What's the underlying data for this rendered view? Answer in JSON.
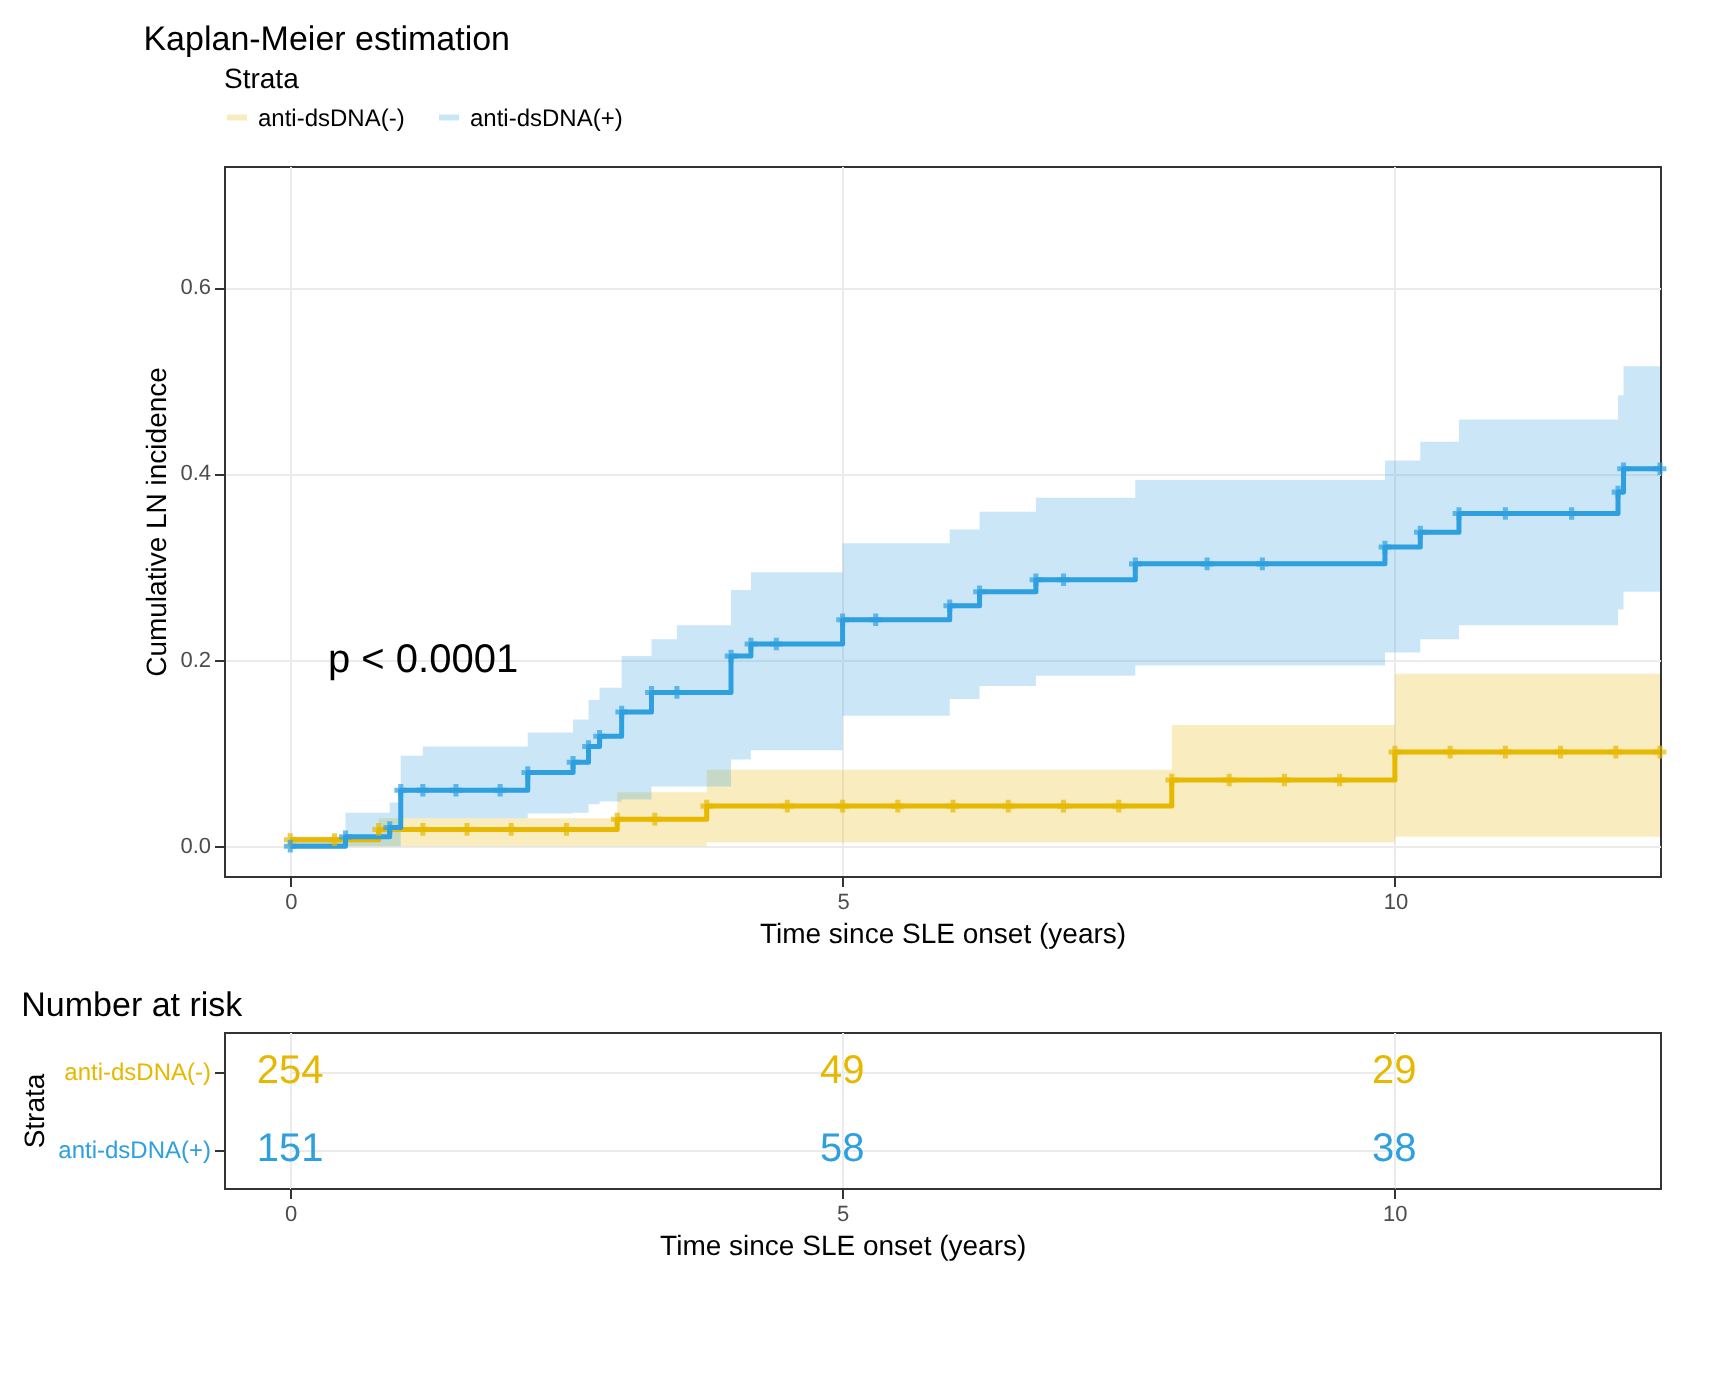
{
  "chart_data": [
    {
      "type": "step",
      "title": "Kaplan-Meier estimation",
      "xlabel": "Time since SLE onset (years)",
      "ylabel": "Cumulative LN incidence",
      "legend_title": "Strata",
      "legend": "top",
      "grid": true,
      "marker": "cross",
      "line_style": "solid",
      "xlim": [
        -0.6,
        12.4
      ],
      "xticks": [
        0,
        5,
        10
      ],
      "ylim": [
        -0.032,
        0.73
      ],
      "yticks": [
        {
          "value": 0,
          "label": "0.0"
        },
        {
          "value": 0.2,
          "label": "0.2"
        },
        {
          "value": 0.4,
          "label": "0.4"
        },
        {
          "value": 0.6,
          "label": "0.6"
        }
      ],
      "annotations": [
        "p < 0.0001"
      ],
      "series": [
        {
          "name": "anti-dsDNA(-)",
          "color": "#e7b800",
          "x": [
            0,
            0.4,
            0.8,
            1.2,
            1.6,
            2.0,
            2.5,
            2.96,
            3.3,
            3.77,
            4.5,
            5.0,
            5.5,
            6.0,
            6.5,
            7.0,
            7.5,
            7.98,
            8.5,
            9.0,
            9.5,
            10.0,
            10.5,
            11.0,
            11.5,
            12.0,
            12.4
          ],
          "values": [
            0.007,
            0.007,
            0.018,
            0.018,
            0.018,
            0.018,
            0.018,
            0.029,
            0.029,
            0.043,
            0.043,
            0.043,
            0.043,
            0.043,
            0.043,
            0.043,
            0.043,
            0.071,
            0.071,
            0.071,
            0.071,
            0.101,
            0.101,
            0.101,
            0.101,
            0.101,
            0.101
          ],
          "lower": [
            0,
            0,
            0,
            0,
            0,
            0,
            0,
            0,
            0,
            0.004,
            0.004,
            0.004,
            0.004,
            0.004,
            0.004,
            0.004,
            0.004,
            0.004,
            0.004,
            0.004,
            0.004,
            0.01,
            0.01,
            0.01,
            0.01,
            0.01,
            0.01
          ],
          "upper": [
            0.01,
            0.01,
            0.03,
            0.03,
            0.03,
            0.03,
            0.03,
            0.058,
            0.058,
            0.082,
            0.082,
            0.082,
            0.082,
            0.082,
            0.082,
            0.082,
            0.082,
            0.13,
            0.13,
            0.13,
            0.13,
            0.185,
            0.185,
            0.185,
            0.185,
            0.185,
            0.185
          ]
        },
        {
          "name": "anti-dsDNA(+)",
          "color": "#2e9fdf",
          "x": [
            0,
            0.5,
            0.9,
            1.0,
            1.2,
            1.5,
            1.9,
            2.15,
            2.56,
            2.7,
            2.8,
            3.0,
            3.27,
            3.5,
            3.99,
            4.17,
            4.4,
            5.0,
            5.3,
            5.97,
            6.24,
            6.75,
            7.0,
            7.65,
            8.3,
            8.8,
            9.91,
            10.23,
            10.58,
            11.0,
            11.6,
            12.02,
            12.07,
            12.4
          ],
          "values": [
            0,
            0.01,
            0.02,
            0.06,
            0.06,
            0.06,
            0.06,
            0.079,
            0.09,
            0.107,
            0.118,
            0.144,
            0.165,
            0.165,
            0.204,
            0.217,
            0.217,
            0.243,
            0.243,
            0.258,
            0.273,
            0.286,
            0.286,
            0.303,
            0.303,
            0.303,
            0.321,
            0.337,
            0.357,
            0.357,
            0.357,
            0.38,
            0.405,
            0.405
          ],
          "lower": [
            0,
            0,
            0,
            0.03,
            0.03,
            0.03,
            0.03,
            0.035,
            0.036,
            0.045,
            0.048,
            0.05,
            0.064,
            0.064,
            0.093,
            0.103,
            0.103,
            0.14,
            0.14,
            0.158,
            0.172,
            0.183,
            0.183,
            0.194,
            0.194,
            0.194,
            0.208,
            0.222,
            0.237,
            0.237,
            0.237,
            0.254,
            0.273,
            0.273
          ],
          "upper": [
            0.01,
            0.036,
            0.047,
            0.097,
            0.107,
            0.107,
            0.107,
            0.122,
            0.136,
            0.157,
            0.17,
            0.204,
            0.222,
            0.237,
            0.275,
            0.294,
            0.294,
            0.325,
            0.325,
            0.34,
            0.359,
            0.374,
            0.374,
            0.393,
            0.393,
            0.393,
            0.414,
            0.434,
            0.458,
            0.458,
            0.458,
            0.484,
            0.515,
            0.515
          ]
        }
      ]
    },
    {
      "type": "heatmap",
      "title": "Number at risk",
      "xlabel": "Time since SLE onset (years)",
      "ylabel": "Strata",
      "grid": true,
      "data_labels": true,
      "categories": [
        "0",
        "5",
        "10"
      ],
      "y_categories": [
        "anti-dsDNA(-)",
        "anti-dsDNA(+)"
      ],
      "cells": [
        [
          254,
          49,
          29
        ],
        [
          151,
          58,
          38
        ]
      ]
    }
  ]
}
